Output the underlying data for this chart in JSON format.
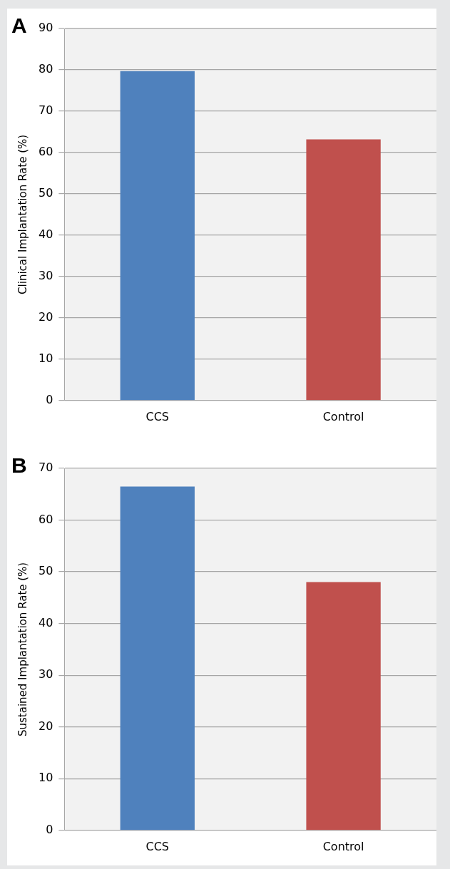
{
  "chart_data": [
    {
      "type": "bar",
      "title": "A",
      "categories": [
        "CCS",
        "Control"
      ],
      "ylabel": "Clinical Implantation Rate (%)",
      "series": [
        {
          "colors": [
            "#4f81bd",
            "#c0504d"
          ],
          "values": [
            79.7,
            63.2
          ]
        }
      ],
      "ylim": [
        0,
        90
      ],
      "yticks": [
        0,
        10,
        20,
        30,
        40,
        50,
        60,
        70,
        80,
        90
      ],
      "grid": "y",
      "legend": false
    },
    {
      "type": "bar",
      "title": "B",
      "categories": [
        "CCS",
        "Control"
      ],
      "ylabel": "Sustained Implantation Rate (%)",
      "series": [
        {
          "colors": [
            "#4f81bd",
            "#c0504d"
          ],
          "values": [
            66.5,
            48
          ]
        }
      ],
      "ylim": [
        0,
        70
      ],
      "yticks": [
        0,
        10,
        20,
        30,
        40,
        50,
        60,
        70
      ],
      "grid": "y",
      "legend": false
    }
  ]
}
